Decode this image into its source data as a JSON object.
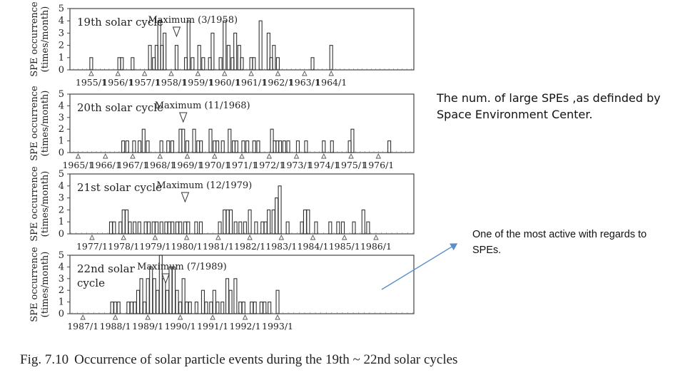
{
  "notes": {
    "definition": "The num. of large SPEs ,as definded by Space Environment Center.",
    "active": "One of the most active with regards to SPEs."
  },
  "caption": {
    "figure": "Fig. 7.10",
    "text": "Occurrence of solar particle events during the 19th ~ 22nd solar cycles"
  },
  "colors": {
    "bars": "#333333",
    "arrow": "#5b8fc9",
    "frame": "#444444"
  },
  "chart_data": [
    {
      "type": "bar",
      "cycle_label": "19th solar cycle",
      "maximum_label": "Maximum (3/1958)",
      "maximum": 1958.2,
      "ylabel": "SPE occurrence (times/month)",
      "ylim": [
        0,
        5
      ],
      "yticks": [
        0,
        1,
        2,
        3,
        4,
        5
      ],
      "xlim": [
        1954.2,
        1967.1
      ],
      "year_labels": [
        "1955/1",
        "1956/1",
        "1957/1",
        "1958/1",
        "1959/1",
        "1960/1",
        "1961/1",
        "1962/1",
        "1963/1",
        "1964/1"
      ],
      "year_values": [
        1955,
        1956,
        1957,
        1958,
        1959,
        1960,
        1961,
        1962,
        1963,
        1964
      ],
      "x": [
        1955.0,
        1956.05,
        1956.15,
        1956.55,
        1957.2,
        1957.35,
        1957.45,
        1957.55,
        1957.65,
        1957.75,
        1958.2,
        1958.55,
        1958.65,
        1958.8,
        1959.05,
        1959.2,
        1959.45,
        1959.55,
        1959.85,
        1960.0,
        1960.15,
        1960.3,
        1960.4,
        1960.55,
        1960.65,
        1961.0,
        1961.1,
        1961.35,
        1961.65,
        1961.75,
        1961.85,
        1962.0,
        1963.3,
        1964.0
      ],
      "values": [
        1,
        1,
        1,
        1,
        2,
        1,
        2,
        4,
        2,
        3,
        2,
        1,
        4,
        1,
        2,
        1,
        1,
        3,
        1,
        4,
        2,
        1,
        3,
        2,
        1,
        1,
        1,
        4,
        3,
        1,
        2,
        1,
        1,
        2
      ]
    },
    {
      "type": "bar",
      "cycle_label": "20th solar cycle",
      "maximum_label": "Maximum (11/1968)",
      "maximum": 1968.85,
      "ylabel": "SPE occurrence (times/month)",
      "ylim": [
        0,
        5
      ],
      "yticks": [
        0,
        1,
        2,
        3,
        4,
        5
      ],
      "xlim": [
        1964.7,
        1977.3
      ],
      "year_labels": [
        "1965/1",
        "1966/1",
        "1967/1",
        "1968/1",
        "1969/1",
        "1970/1",
        "1971/1",
        "1972/1",
        "1973/1",
        "1974/1",
        "1975/1",
        "1976/1"
      ],
      "year_values": [
        1965,
        1966,
        1967,
        1968,
        1969,
        1970,
        1971,
        1972,
        1973,
        1974,
        1975,
        1976
      ],
      "x": [
        1966.65,
        1966.8,
        1967.05,
        1967.25,
        1967.4,
        1967.55,
        1968.05,
        1968.3,
        1968.45,
        1968.75,
        1968.85,
        1969.0,
        1969.25,
        1969.4,
        1969.5,
        1969.85,
        1970.0,
        1970.1,
        1970.3,
        1970.55,
        1970.7,
        1970.8,
        1971.05,
        1971.2,
        1971.45,
        1971.6,
        1972.1,
        1972.2,
        1972.3,
        1972.4,
        1972.55,
        1972.7,
        1973.05,
        1973.35,
        1974.0,
        1974.3,
        1974.95,
        1975.05,
        1976.4
      ],
      "values": [
        1,
        1,
        1,
        1,
        2,
        1,
        1,
        1,
        1,
        2,
        2,
        1,
        2,
        1,
        1,
        2,
        1,
        1,
        1,
        2,
        1,
        1,
        1,
        1,
        1,
        1,
        2,
        1,
        1,
        1,
        1,
        1,
        1,
        1,
        1,
        1,
        1,
        2,
        1
      ]
    },
    {
      "type": "bar",
      "cycle_label": "21st solar cycle",
      "maximum_label": "Maximum (12/1979)",
      "maximum": 1979.95,
      "ylabel": "SPE occurrence (times/month)",
      "ylim": [
        0,
        5
      ],
      "yticks": [
        0,
        1,
        2,
        3,
        4,
        5
      ],
      "xlim": [
        1976.3,
        1987.2
      ],
      "year_labels": [
        "1977/1",
        "1978/1",
        "1979/1",
        "1980/1",
        "1981/1",
        "1982/1",
        "1983/1",
        "1984/1",
        "1985/1",
        "1986/1"
      ],
      "year_values": [
        1977,
        1978,
        1979,
        1980,
        1981,
        1982,
        1983,
        1984,
        1985,
        1986
      ],
      "x": [
        1977.6,
        1977.7,
        1977.9,
        1978.0,
        1978.1,
        1978.2,
        1978.35,
        1978.5,
        1978.7,
        1978.8,
        1978.95,
        1979.05,
        1979.2,
        1979.35,
        1979.45,
        1979.55,
        1979.7,
        1979.8,
        1979.95,
        1980.05,
        1980.3,
        1980.45,
        1981.05,
        1981.2,
        1981.3,
        1981.4,
        1981.55,
        1981.7,
        1981.85,
        1982.0,
        1982.2,
        1982.4,
        1982.5,
        1982.6,
        1982.75,
        1982.85,
        1982.95,
        1983.2,
        1983.65,
        1983.75,
        1983.85,
        1984.1,
        1984.55,
        1984.8,
        1984.95,
        1985.3,
        1985.6,
        1985.75
      ],
      "values": [
        1,
        1,
        1,
        2,
        2,
        1,
        1,
        1,
        1,
        1,
        1,
        1,
        1,
        1,
        1,
        1,
        1,
        1,
        1,
        1,
        1,
        1,
        1,
        2,
        2,
        2,
        1,
        1,
        1,
        2,
        1,
        1,
        1,
        2,
        2,
        3,
        4,
        1,
        1,
        2,
        2,
        1,
        1,
        1,
        1,
        1,
        2,
        1
      ]
    },
    {
      "type": "bar",
      "cycle_label": "22nd solar cycle",
      "maximum_label": "Maximum (7/1989)",
      "maximum": 1989.55,
      "ylabel": "SPE occurrence (times/month)",
      "ylim": [
        0,
        5
      ],
      "yticks": [
        0,
        1,
        2,
        3,
        4,
        5
      ],
      "xlim": [
        1986.6,
        1997.2
      ],
      "year_labels": [
        "1987/1",
        "1988/1",
        "1989/1",
        "1990/1",
        "1991/1",
        "1992/1",
        "1993/1"
      ],
      "year_values": [
        1987,
        1988,
        1989,
        1990,
        1991,
        1992,
        1993
      ],
      "x": [
        1987.9,
        1988.0,
        1988.1,
        1988.4,
        1988.5,
        1988.6,
        1988.7,
        1988.8,
        1988.9,
        1989.0,
        1989.1,
        1989.2,
        1989.3,
        1989.4,
        1989.5,
        1989.6,
        1989.7,
        1989.8,
        1989.9,
        1990.0,
        1990.1,
        1990.2,
        1990.3,
        1990.5,
        1990.7,
        1990.8,
        1990.95,
        1991.05,
        1991.15,
        1991.3,
        1991.45,
        1991.55,
        1991.7,
        1991.85,
        1991.95,
        1992.2,
        1992.3,
        1992.5,
        1992.6,
        1992.75,
        1993.0
      ],
      "values": [
        1,
        1,
        1,
        1,
        1,
        1,
        2,
        3,
        1,
        3,
        4,
        3,
        2,
        5,
        3,
        2,
        4,
        4,
        2,
        1,
        3,
        1,
        1,
        1,
        2,
        1,
        1,
        2,
        1,
        1,
        3,
        2,
        3,
        1,
        1,
        1,
        1,
        1,
        1,
        1,
        2
      ]
    }
  ]
}
